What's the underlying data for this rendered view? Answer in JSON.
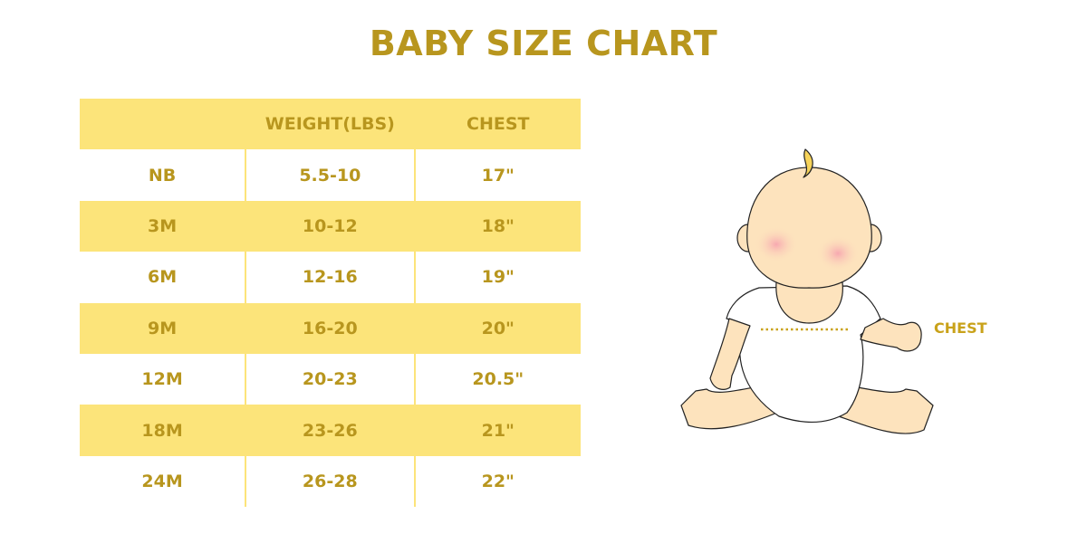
{
  "title": "BABY SIZE CHART",
  "table": {
    "headers": [
      "",
      "WEIGHT(LBS)",
      "CHEST"
    ],
    "rows": [
      [
        "NB",
        "5.5-10",
        "17\""
      ],
      [
        "3M",
        "10-12",
        "18\""
      ],
      [
        "6M",
        "12-16",
        "19\""
      ],
      [
        "9M",
        "16-20",
        "20\""
      ],
      [
        "12M",
        "20-23",
        "20.5\""
      ],
      [
        "18M",
        "23-26",
        "21\""
      ],
      [
        "24M",
        "26-28",
        "22\""
      ]
    ]
  },
  "illustration": {
    "label": "CHEST",
    "icon": "baby-illustration"
  },
  "colors": {
    "text": "#b8961e",
    "stripe": "#fce47a",
    "skin": "#fde3bd"
  }
}
